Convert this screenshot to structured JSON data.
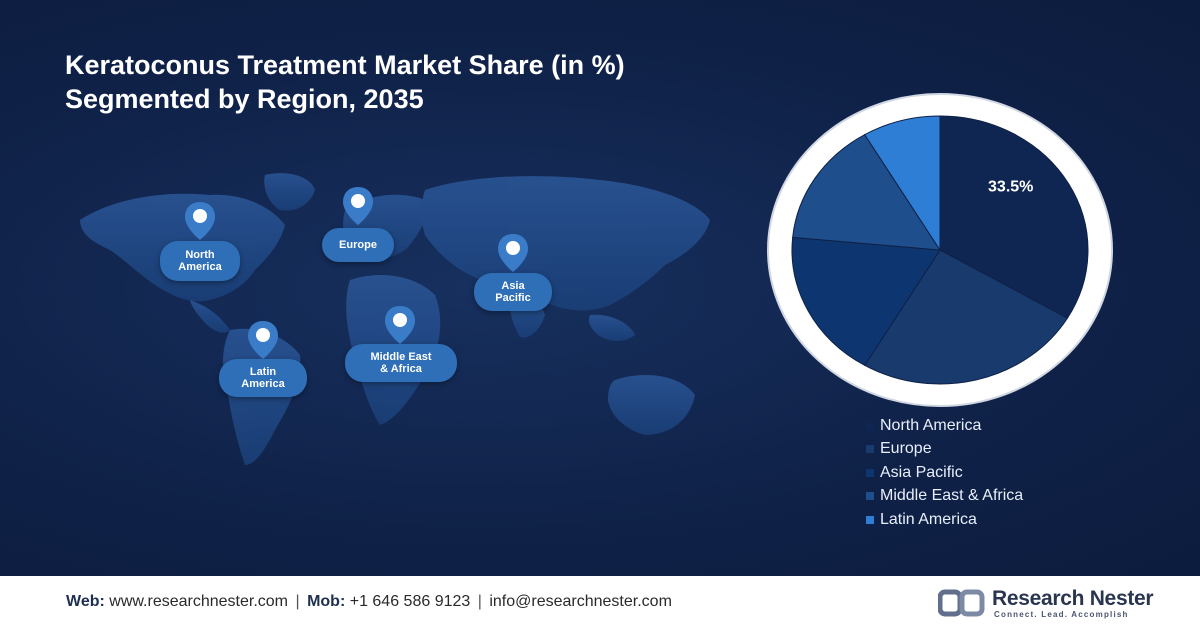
{
  "title": {
    "line1": "Keratoconus Treatment Market Share (in %)",
    "line2": "Segmented by Region, 2035"
  },
  "map_labels": [
    {
      "id": "north-america",
      "lines": [
        "North",
        "America"
      ]
    },
    {
      "id": "europe",
      "lines": [
        "Europe"
      ]
    },
    {
      "id": "asia-pacific",
      "lines": [
        "Asia",
        "Pacific"
      ]
    },
    {
      "id": "latin-america",
      "lines": [
        "Latin",
        "America"
      ]
    },
    {
      "id": "middle-east-africa",
      "lines": [
        "Middle East",
        "& Africa"
      ]
    }
  ],
  "chart_data": {
    "type": "pie",
    "title": "Keratoconus Treatment Market Share (in %) Segmented by Region, 2035",
    "categories": [
      "North America",
      "Europe",
      "Asia Pacific",
      "Middle East & Africa",
      "Latin America"
    ],
    "values": [
      33.5,
      25.0,
      18.0,
      15.0,
      8.5
    ],
    "labels_shown": [
      "33.5%",
      "",
      "",
      "",
      ""
    ],
    "colors": [
      "#0f2552",
      "#183a6c",
      "#0d3670",
      "#1e4e8c",
      "#2f7ed6"
    ],
    "legend_position": "bottom-right"
  },
  "footer": {
    "web_label": "Web:",
    "web_value": "www.researchnester.com",
    "mob_label": "Mob:",
    "mob_value": "+1 646 586 9123",
    "email": "info@researchnester.com",
    "separator": "|"
  },
  "brand": {
    "name": "Research Nester",
    "tagline": "Connect. Lead. Accomplish"
  },
  "colors": {
    "background": "#0f2147",
    "map_fill": "#244d8a",
    "label_fill": "#2f6fb8",
    "footer_bg": "#ffffff"
  }
}
